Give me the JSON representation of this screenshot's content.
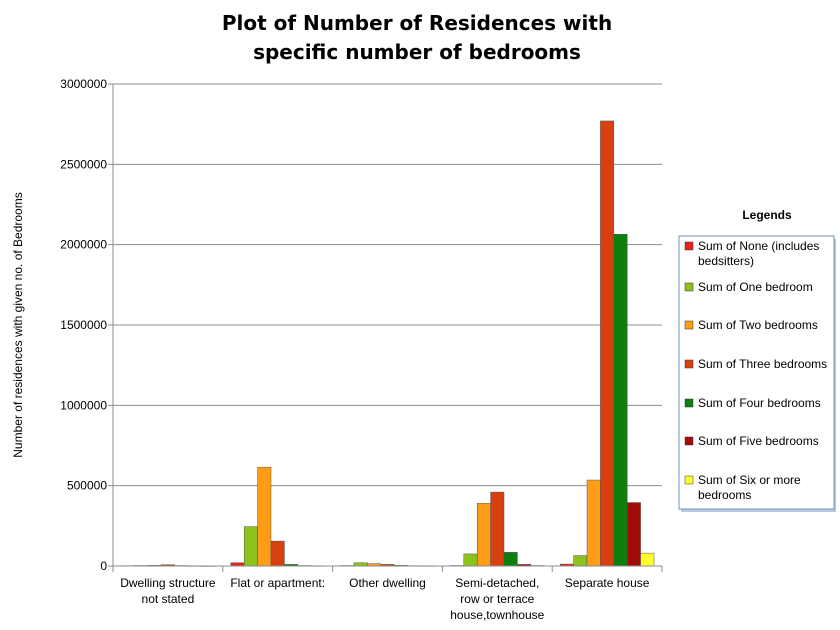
{
  "chart_data": {
    "type": "bar",
    "title_lines": [
      "Plot of Number of Residences with",
      "specific number of bedrooms"
    ],
    "xlabel": "",
    "ylabel": "Number of residences with given no. of Bedrooms",
    "ylim": [
      0,
      3000000
    ],
    "yticks": [
      "0",
      "500000",
      "1000000",
      "1500000",
      "2000000",
      "2500000",
      "3000000"
    ],
    "grid": "horizontal",
    "legend_placement": "right",
    "legend_title": "Legends",
    "categories": [
      "Dwelling structure not stated",
      "Flat or apartment:",
      "Other dwelling",
      "Semi-detached, row or terrace house,townhouse",
      "Separate house"
    ],
    "category_label_lines": [
      [
        "Dwelling structure",
        "not stated"
      ],
      [
        "Flat or apartment:"
      ],
      [
        "Other dwelling"
      ],
      [
        "Semi-detached,",
        "row or terrace",
        "house,townhouse"
      ],
      [
        "Separate house"
      ]
    ],
    "series": [
      {
        "name": "Sum of None (includes bedsitters)",
        "legend_lines": [
          "Sum of None (includes",
          "bedsitters)"
        ],
        "color": "#e8221b",
        "values": [
          2000,
          20000,
          3000,
          3000,
          12000
        ]
      },
      {
        "name": "Sum of One bedroom",
        "legend_lines": [
          "Sum of One bedroom"
        ],
        "color": "#8cc21b",
        "values": [
          3000,
          245000,
          20000,
          75000,
          65000
        ]
      },
      {
        "name": "Sum of Two bedrooms",
        "legend_lines": [
          "Sum of Two bedrooms"
        ],
        "color": "#ff9d17",
        "values": [
          4000,
          615000,
          15000,
          390000,
          535000
        ]
      },
      {
        "name": "Sum of Three bedrooms",
        "legend_lines": [
          "Sum of Three bedrooms"
        ],
        "color": "#d8410f",
        "values": [
          8000,
          155000,
          10000,
          460000,
          2770000
        ]
      },
      {
        "name": "Sum of Four bedrooms",
        "legend_lines": [
          "Sum of Four bedrooms"
        ],
        "color": "#0e7f0e",
        "values": [
          3000,
          10000,
          4000,
          85000,
          2065000
        ]
      },
      {
        "name": "Sum of Five bedrooms",
        "legend_lines": [
          "Sum of Five bedrooms"
        ],
        "color": "#a30a0a",
        "values": [
          1000,
          3000,
          2000,
          10000,
          395000
        ]
      },
      {
        "name": "Sum of Six or more bedrooms",
        "legend_lines": [
          "Sum of Six or more",
          "bedrooms"
        ],
        "color": "#ffff2e",
        "values": [
          500,
          1000,
          1000,
          3000,
          80000
        ]
      }
    ]
  }
}
